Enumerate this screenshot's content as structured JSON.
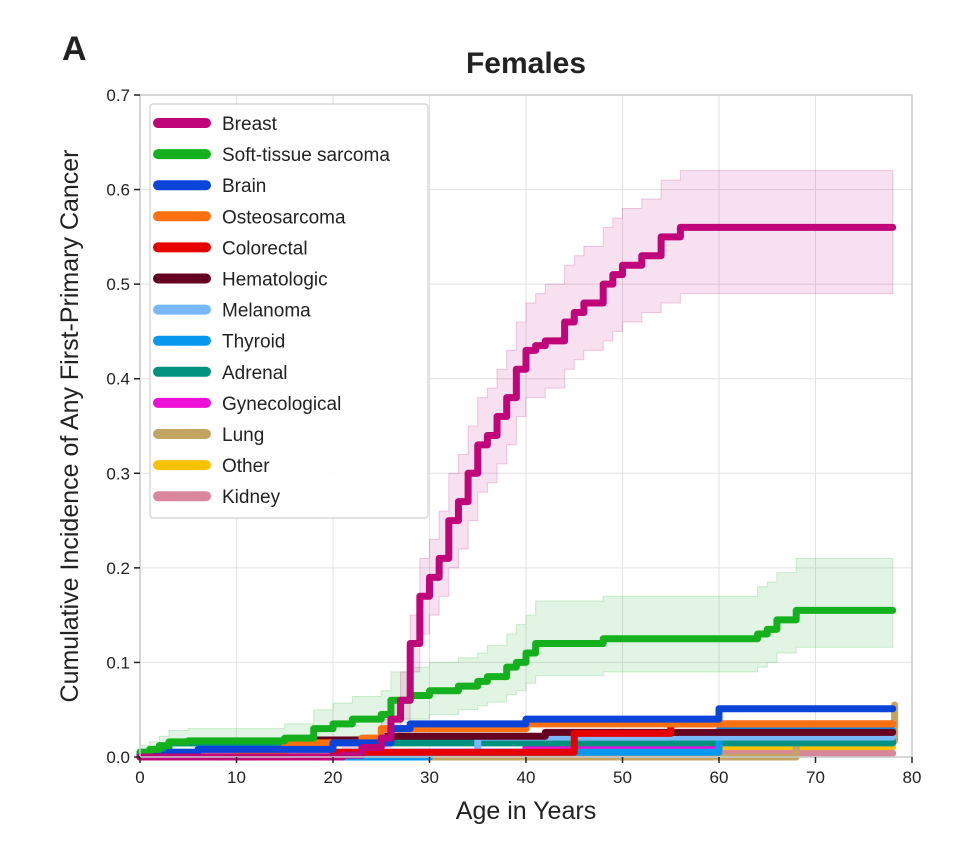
{
  "chart_data": {
    "type": "line",
    "panel_label": "A",
    "title": "Females",
    "xlabel": "Age in Years",
    "ylabel": "Cumulative Incidence of Any First-Primary Cancer",
    "xlim": [
      0,
      80
    ],
    "ylim": [
      0,
      0.7
    ],
    "xticks": [
      "0",
      "10",
      "20",
      "30",
      "40",
      "50",
      "60",
      "70",
      "80"
    ],
    "yticks": [
      "0.0",
      "0.1",
      "0.2",
      "0.3",
      "0.4",
      "0.5",
      "0.6",
      "0.7"
    ],
    "grid": true,
    "legend_position": "top-left",
    "step": true,
    "series": [
      {
        "name": "Breast",
        "color": "#c0047a",
        "x": [
          0,
          21,
          23,
          25,
          26,
          27,
          28,
          29,
          30,
          31,
          32,
          33,
          34,
          35,
          36,
          37,
          38,
          39,
          40,
          41,
          42,
          44,
          45,
          46,
          48,
          49,
          50,
          52,
          54,
          56,
          78
        ],
        "y": [
          0,
          0.002,
          0.01,
          0.02,
          0.04,
          0.06,
          0.12,
          0.17,
          0.19,
          0.21,
          0.25,
          0.27,
          0.3,
          0.33,
          0.34,
          0.36,
          0.38,
          0.41,
          0.43,
          0.435,
          0.44,
          0.46,
          0.47,
          0.48,
          0.5,
          0.51,
          0.52,
          0.53,
          0.55,
          0.56,
          0.56
        ],
        "ci_low": [
          0,
          0,
          0.002,
          0.01,
          0.02,
          0.04,
          0.09,
          0.13,
          0.15,
          0.17,
          0.2,
          0.22,
          0.25,
          0.28,
          0.29,
          0.31,
          0.33,
          0.36,
          0.38,
          0.38,
          0.39,
          0.41,
          0.42,
          0.43,
          0.44,
          0.45,
          0.46,
          0.47,
          0.48,
          0.49,
          0.49
        ],
        "ci_high": [
          0,
          0.01,
          0.02,
          0.04,
          0.06,
          0.09,
          0.15,
          0.21,
          0.23,
          0.26,
          0.3,
          0.32,
          0.35,
          0.38,
          0.39,
          0.41,
          0.43,
          0.46,
          0.48,
          0.49,
          0.5,
          0.52,
          0.53,
          0.54,
          0.56,
          0.57,
          0.58,
          0.59,
          0.61,
          0.62,
          0.62
        ]
      },
      {
        "name": "Soft-tissue sarcoma",
        "color": "#14b01e",
        "x": [
          0,
          1,
          2,
          3,
          5,
          15,
          18,
          20,
          22,
          25,
          26,
          28,
          30,
          33,
          35,
          36,
          38,
          39,
          40,
          41,
          48,
          64,
          65,
          66,
          68,
          78
        ],
        "y": [
          0.005,
          0.008,
          0.012,
          0.016,
          0.017,
          0.02,
          0.03,
          0.035,
          0.04,
          0.045,
          0.06,
          0.065,
          0.07,
          0.075,
          0.08,
          0.085,
          0.095,
          0.1,
          0.11,
          0.12,
          0.125,
          0.13,
          0.135,
          0.145,
          0.155,
          0.155
        ],
        "ci_low": [
          0,
          0,
          0.003,
          0.005,
          0.006,
          0.008,
          0.014,
          0.018,
          0.022,
          0.026,
          0.036,
          0.04,
          0.045,
          0.05,
          0.054,
          0.058,
          0.066,
          0.07,
          0.078,
          0.086,
          0.09,
          0.095,
          0.1,
          0.11,
          0.116,
          0.116
        ],
        "ci_high": [
          0.012,
          0.016,
          0.022,
          0.028,
          0.03,
          0.035,
          0.05,
          0.057,
          0.064,
          0.07,
          0.09,
          0.095,
          0.1,
          0.105,
          0.11,
          0.118,
          0.13,
          0.14,
          0.15,
          0.165,
          0.17,
          0.18,
          0.185,
          0.195,
          0.21,
          0.21
        ]
      },
      {
        "name": "Brain",
        "color": "#0a44d8",
        "x": [
          0,
          3,
          6,
          20,
          26,
          28,
          40,
          60,
          78
        ],
        "y": [
          0.002,
          0.005,
          0.008,
          0.015,
          0.03,
          0.035,
          0.04,
          0.051,
          0.051
        ]
      },
      {
        "name": "Osteosarcoma",
        "color": "#ff7010",
        "x": [
          0,
          10,
          15,
          23,
          25,
          40,
          78
        ],
        "y": [
          0,
          0.003,
          0.015,
          0.02,
          0.03,
          0.035,
          0.035
        ]
      },
      {
        "name": "Colorectal",
        "color": "#e60000",
        "x": [
          0,
          20,
          45,
          55,
          78
        ],
        "y": [
          0,
          0.005,
          0.025,
          0.035,
          0.035
        ]
      },
      {
        "name": "Hematologic",
        "color": "#650020",
        "x": [
          0,
          12,
          15,
          25,
          42,
          60,
          78
        ],
        "y": [
          0,
          0.004,
          0.018,
          0.022,
          0.026,
          0.026,
          0.026
        ]
      },
      {
        "name": "Melanoma",
        "color": "#78b8f8",
        "x": [
          0,
          20,
          35,
          60,
          78
        ],
        "y": [
          0,
          0.005,
          0.021,
          0.021,
          0.021
        ]
      },
      {
        "name": "Thyroid",
        "color": "#0898f0",
        "x": [
          0,
          30,
          60,
          78
        ],
        "y": [
          0,
          0.005,
          0.028,
          0.028
        ]
      },
      {
        "name": "Adrenal",
        "color": "#00917f",
        "x": [
          0,
          3,
          40,
          78
        ],
        "y": [
          0.005,
          0.015,
          0.015,
          0.015
        ]
      },
      {
        "name": "Gynecological",
        "color": "#ee10d8",
        "x": [
          0,
          28,
          40,
          60,
          78
        ],
        "y": [
          0,
          0.005,
          0.012,
          0.019,
          0.019
        ]
      },
      {
        "name": "Lung",
        "color": "#c4a462",
        "x": [
          0,
          68,
          78,
          78.2
        ],
        "y": [
          0,
          0.017,
          0.017,
          0.055
        ]
      },
      {
        "name": "Other",
        "color": "#fac206",
        "x": [
          0,
          40,
          78
        ],
        "y": [
          0,
          0.011,
          0.011
        ]
      },
      {
        "name": "Kidney",
        "color": "#d8879c",
        "x": [
          0,
          78
        ],
        "y": [
          0.004,
          0.004
        ]
      }
    ]
  }
}
